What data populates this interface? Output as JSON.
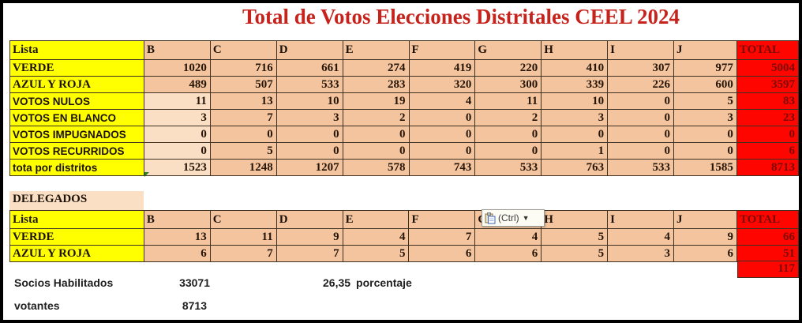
{
  "title": "Total de Votos Elecciones Distritales CEEL 2024",
  "votes_table": {
    "header": [
      "Lista",
      "B",
      "C",
      "D",
      "E",
      "F",
      "G",
      "H",
      "I",
      "J",
      "TOTAL"
    ],
    "rows": [
      {
        "label": "VERDE",
        "style": "serif",
        "values": [
          "1020",
          "716",
          "661",
          "274",
          "419",
          "220",
          "410",
          "307",
          "977"
        ],
        "total": "5004",
        "light_b": false
      },
      {
        "label": "AZUL Y ROJA",
        "style": "serif",
        "values": [
          "489",
          "507",
          "533",
          "283",
          "320",
          "300",
          "339",
          "226",
          "600"
        ],
        "total": "3597",
        "light_b": false
      },
      {
        "label": "VOTOS NULOS",
        "style": "sans",
        "values": [
          "11",
          "13",
          "10",
          "19",
          "4",
          "11",
          "10",
          "0",
          "5"
        ],
        "total": "83",
        "light_b": true
      },
      {
        "label": "VOTOS EN BLANCO",
        "style": "sans",
        "values": [
          "3",
          "7",
          "3",
          "2",
          "0",
          "2",
          "3",
          "0",
          "3"
        ],
        "total": "23",
        "light_b": true
      },
      {
        "label": "VOTOS IMPUGNADOS",
        "style": "sans",
        "values": [
          "0",
          "0",
          "0",
          "0",
          "0",
          "0",
          "0",
          "0",
          "0"
        ],
        "total": "0",
        "light_b": true
      },
      {
        "label": "VOTOS RECURRIDOS",
        "style": "sans",
        "values": [
          "0",
          "5",
          "0",
          "0",
          "0",
          "0",
          "1",
          "0",
          "0"
        ],
        "total": "6",
        "light_b": true
      },
      {
        "label": "tota por distritos",
        "style": "sans",
        "values": [
          "1523",
          "1248",
          "1207",
          "578",
          "743",
          "533",
          "763",
          "533",
          "1585"
        ],
        "total": "8713",
        "light_b": true
      }
    ]
  },
  "delegados": {
    "section_label": "DELEGADOS",
    "header": [
      "Lista",
      "B",
      "C",
      "D",
      "E",
      "F",
      "G",
      "H",
      "I",
      "J",
      "TOTAL"
    ],
    "rows": [
      {
        "label": "VERDE",
        "style": "serif",
        "values": [
          "13",
          "11",
          "9",
          "4",
          "7",
          "4",
          "5",
          "4",
          "9"
        ],
        "total": "66",
        "light_b": false
      },
      {
        "label": "AZUL Y ROJA",
        "style": "serif",
        "values": [
          "6",
          "7",
          "7",
          "5",
          "6",
          "6",
          "5",
          "3",
          "6"
        ],
        "total": "51",
        "light_b": false
      }
    ],
    "grand_total": "117"
  },
  "paste_options": {
    "label": "(Ctrl)",
    "icon": "clipboard-icon"
  },
  "footer": {
    "socios_label": "Socios Habilitados",
    "socios_value": "33071",
    "porcentaje_value": "26,35",
    "porcentaje_label": "porcentaje",
    "votantes_label": "votantes",
    "votantes_value": "8713"
  },
  "colors": {
    "cell_peach": "#f3c49e",
    "cell_light_peach": "#fbdfc4",
    "cell_yellow": "#ffff00",
    "cell_red": "#fe0500",
    "total_text_dark_red": "#7c0b06",
    "title_red": "#c7231d",
    "grid_line": "#3f3122"
  }
}
